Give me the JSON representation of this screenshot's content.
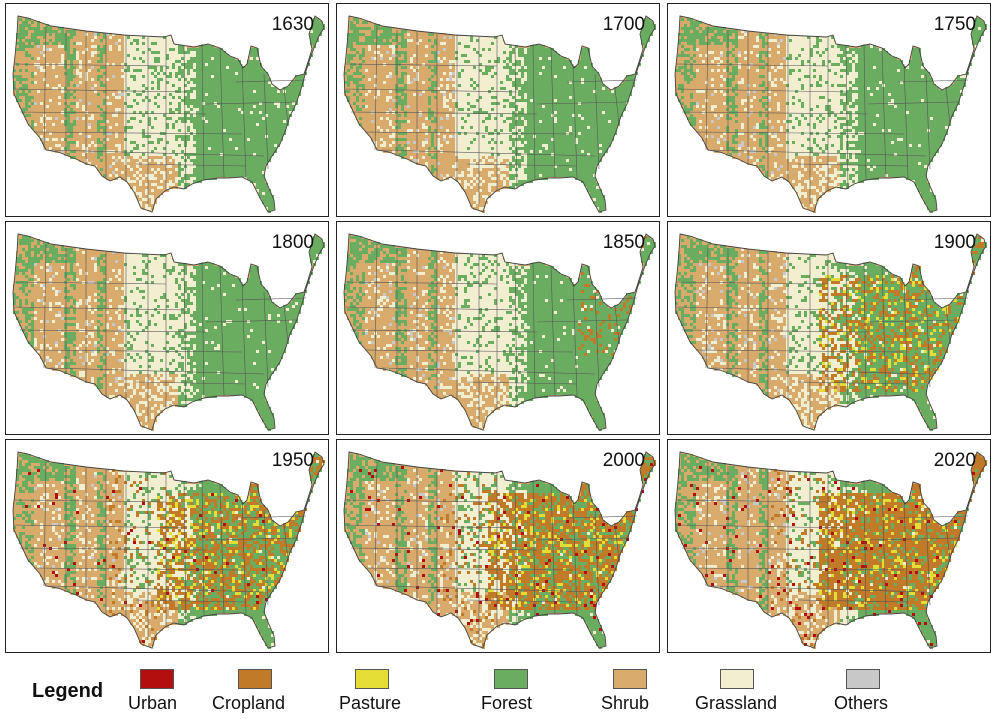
{
  "figure": {
    "panels": [
      {
        "year": "1630"
      },
      {
        "year": "1700"
      },
      {
        "year": "1750"
      },
      {
        "year": "1800"
      },
      {
        "year": "1850"
      },
      {
        "year": "1900"
      },
      {
        "year": "1950"
      },
      {
        "year": "2000"
      },
      {
        "year": "2020"
      }
    ],
    "legend": {
      "title": "Legend",
      "items": [
        {
          "label": "Urban",
          "color": "#b30f0f"
        },
        {
          "label": "Cropland",
          "color": "#c07a28"
        },
        {
          "label": "Pasture",
          "color": "#e4dd35"
        },
        {
          "label": "Forest",
          "color": "#6aad60"
        },
        {
          "label": "Shrub",
          "color": "#d8aa6c"
        },
        {
          "label": "Grassland",
          "color": "#f2eed0"
        },
        {
          "label": "Others",
          "color": "#c8c8c8"
        }
      ]
    }
  }
}
